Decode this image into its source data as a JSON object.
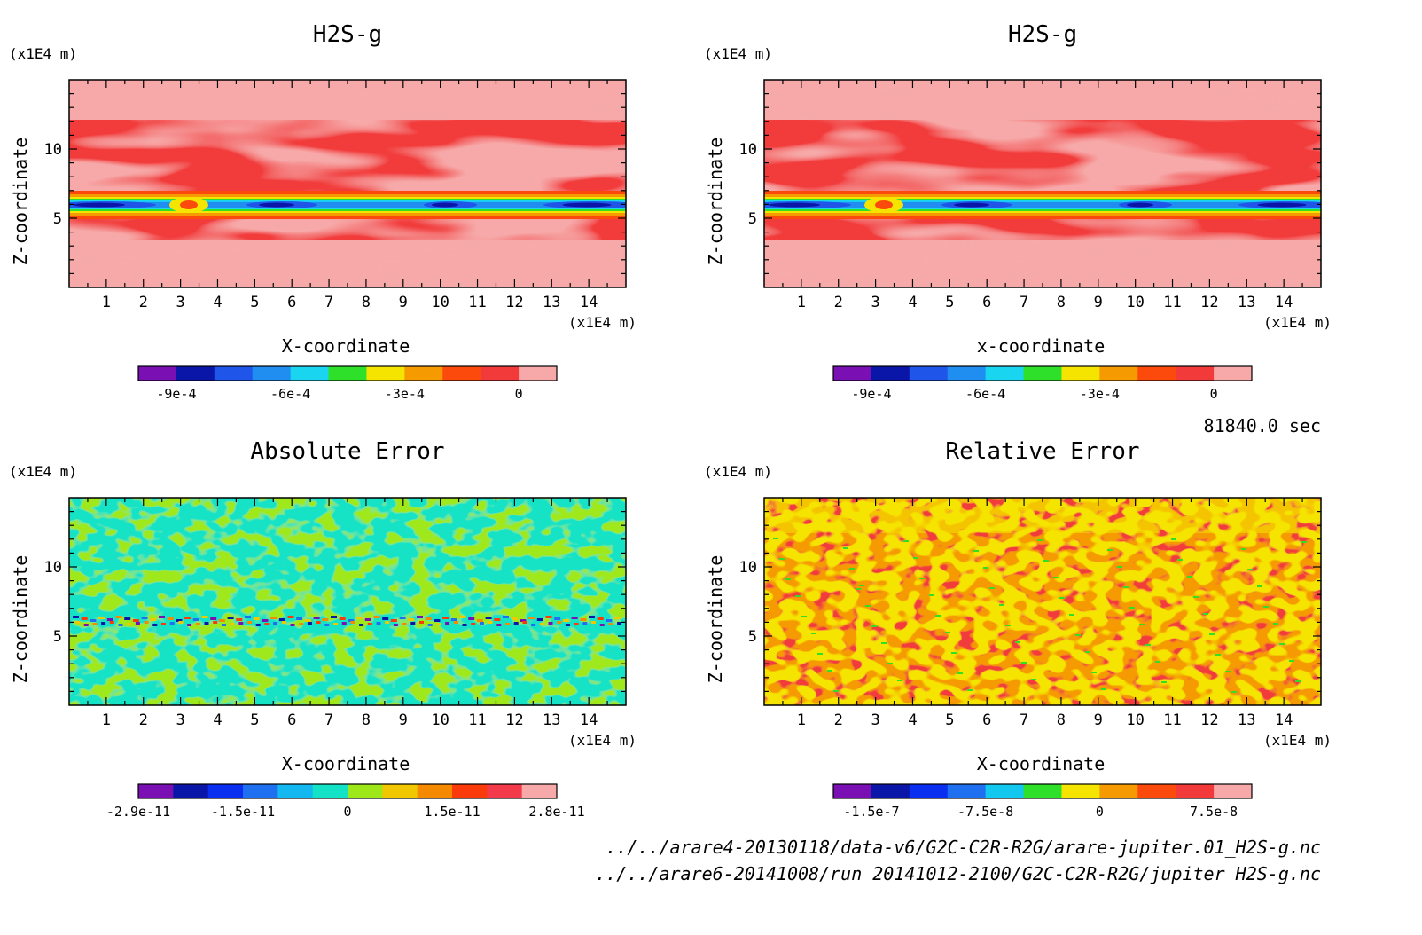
{
  "panels": [
    {
      "title": "H2S-g",
      "yunit": "(x1E4 m)",
      "xunit": "(x1E4 m)",
      "xlabel": "X-coordinate",
      "ylabel": "Z-coordinate",
      "pattern": "field"
    },
    {
      "title": "H2S-g",
      "yunit": "(x1E4 m)",
      "xunit": "(x1E4 m)",
      "xlabel": "x-coordinate",
      "ylabel": "Z-coordinate",
      "pattern": "field"
    },
    {
      "title": "Absolute Error",
      "yunit": "(x1E4 m)",
      "xunit": "(x1E4 m)",
      "xlabel": "X-coordinate",
      "ylabel": "Z-coordinate",
      "pattern": "abs"
    },
    {
      "title": "Relative Error",
      "yunit": "(x1E4 m)",
      "xunit": "(x1E4 m)",
      "xlabel": "X-coordinate",
      "ylabel": "Z-coordinate",
      "pattern": "rel"
    }
  ],
  "time_label": "81840.0 sec",
  "files": [
    "../../arare4-20130118/data-v6/G2C-C2R-R2G/arare-jupiter.01_H2S-g.nc",
    "../../arare6-20141008/run_20141012-2100/G2C-C2R-R2G/jupiter_H2S-g.nc"
  ],
  "chart_data": [
    {
      "type": "heatmap",
      "title": "H2S-g",
      "xlabel": "X-coordinate",
      "ylabel": "Z-coordinate",
      "x_unit": "(x1E4 m)",
      "y_unit": "(x1E4 m)",
      "xlim": [
        0,
        15
      ],
      "ylim": [
        0,
        15
      ],
      "x_ticks": [
        "1",
        "2",
        "3",
        "4",
        "5",
        "6",
        "7",
        "8",
        "9",
        "10",
        "11",
        "12",
        "13",
        "14"
      ],
      "y_ticks": [
        "5",
        "10"
      ],
      "colorbar": {
        "colors": [
          "#7a0fb3",
          "#0a16a8",
          "#1f55e8",
          "#1f8ef0",
          "#1ad5ef",
          "#2fe02a",
          "#f5e400",
          "#f59a00",
          "#fb4a0c",
          "#f23a3a",
          "#f7a9a9"
        ],
        "labels": [
          "-9e-4",
          "-6e-4",
          "-3e-4",
          "0"
        ]
      }
    },
    {
      "type": "heatmap",
      "title": "H2S-g",
      "xlabel": "x-coordinate",
      "ylabel": "Z-coordinate",
      "x_unit": "(x1E4 m)",
      "y_unit": "(x1E4 m)",
      "xlim": [
        0,
        15
      ],
      "ylim": [
        0,
        15
      ],
      "x_ticks": [
        "1",
        "2",
        "3",
        "4",
        "5",
        "6",
        "7",
        "8",
        "9",
        "10",
        "11",
        "12",
        "13",
        "14"
      ],
      "y_ticks": [
        "5",
        "10"
      ],
      "colorbar": {
        "colors": [
          "#7a0fb3",
          "#0a16a8",
          "#1f55e8",
          "#1f8ef0",
          "#1ad5ef",
          "#2fe02a",
          "#f5e400",
          "#f59a00",
          "#fb4a0c",
          "#f23a3a",
          "#f7a9a9"
        ],
        "labels": [
          "-9e-4",
          "-6e-4",
          "-3e-4",
          "0"
        ]
      }
    },
    {
      "type": "heatmap",
      "title": "Absolute Error",
      "xlabel": "X-coordinate",
      "ylabel": "Z-coordinate",
      "x_unit": "(x1E4 m)",
      "y_unit": "(x1E4 m)",
      "xlim": [
        0,
        15
      ],
      "ylim": [
        0,
        15
      ],
      "x_ticks": [
        "1",
        "2",
        "3",
        "4",
        "5",
        "6",
        "7",
        "8",
        "9",
        "10",
        "11",
        "12",
        "13",
        "14"
      ],
      "y_ticks": [
        "5",
        "10"
      ],
      "colorbar": {
        "colors": [
          "#7a0fb3",
          "#0a16a8",
          "#0a2ff0",
          "#1f70f0",
          "#12b8ef",
          "#14e2c6",
          "#9ee81a",
          "#f1c800",
          "#f58a00",
          "#fb3a0c",
          "#f23a4a",
          "#f7a9a9"
        ],
        "labels": [
          "-2.9e-11",
          "-1.5e-11",
          "0",
          "1.5e-11",
          "2.8e-11"
        ]
      }
    },
    {
      "type": "heatmap",
      "title": "Relative Error",
      "xlabel": "X-coordinate",
      "ylabel": "Z-coordinate",
      "x_unit": "(x1E4 m)",
      "y_unit": "(x1E4 m)",
      "xlim": [
        0,
        15
      ],
      "ylim": [
        0,
        15
      ],
      "x_ticks": [
        "1",
        "2",
        "3",
        "4",
        "5",
        "6",
        "7",
        "8",
        "9",
        "10",
        "11",
        "12",
        "13",
        "14"
      ],
      "y_ticks": [
        "5",
        "10"
      ],
      "colorbar": {
        "colors": [
          "#7a0fb3",
          "#0a16a8",
          "#0a2ff0",
          "#1f70f0",
          "#12c8ef",
          "#2fe02a",
          "#f5e400",
          "#f59a00",
          "#fb4a0c",
          "#f23a3a",
          "#f7a9a9"
        ],
        "labels": [
          "-1.5e-7",
          "-7.5e-8",
          "0",
          "7.5e-8"
        ]
      }
    }
  ]
}
